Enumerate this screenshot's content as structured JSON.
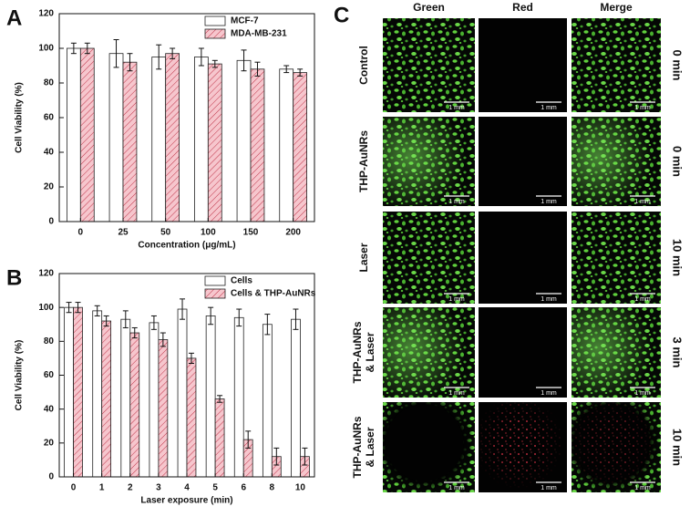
{
  "chart_data": [
    {
      "type": "bar",
      "label": "A",
      "x_label": "Concentration (μg/mL)",
      "y_label": "Cell Viability (%)",
      "categories": [
        "0",
        "25",
        "50",
        "100",
        "150",
        "200"
      ],
      "series": [
        {
          "name": "MCF-7",
          "color": "#ffffff",
          "hatch": false,
          "values": [
            100,
            97,
            95,
            95,
            93,
            88
          ],
          "errors": [
            3,
            8,
            7,
            5,
            6,
            2
          ]
        },
        {
          "name": "MDA-MB-231",
          "color": "#f6c6cd",
          "hatch": true,
          "values": [
            100,
            92,
            97,
            91,
            88,
            86
          ],
          "errors": [
            3,
            5,
            3,
            2,
            4,
            2
          ]
        }
      ],
      "ylim": [
        0,
        120
      ],
      "yticks": [
        0,
        20,
        40,
        60,
        80,
        100,
        120
      ],
      "legend": "upper right"
    },
    {
      "type": "bar",
      "label": "B",
      "x_label": "Laser exposure (min)",
      "y_label": "Cell Viability (%)",
      "categories": [
        "0",
        "1",
        "2",
        "3",
        "4",
        "5",
        "6",
        "8",
        "10"
      ],
      "series": [
        {
          "name": "Cells",
          "color": "#ffffff",
          "hatch": false,
          "values": [
            100,
            98,
            93,
            91,
            99,
            95,
            94,
            90,
            93
          ],
          "errors": [
            3,
            3,
            5,
            4,
            6,
            5,
            5,
            6,
            6
          ]
        },
        {
          "name": "Cells & THP-AuNRs",
          "color": "#f6c6cd",
          "hatch": true,
          "values": [
            100,
            92,
            85,
            81,
            70,
            46,
            22,
            12,
            12
          ],
          "errors": [
            3,
            3,
            3,
            4,
            3,
            2,
            5,
            5,
            5
          ]
        }
      ],
      "ylim": [
        0,
        120
      ],
      "yticks": [
        0,
        20,
        40,
        60,
        80,
        100,
        120
      ],
      "legend": "upper right"
    }
  ],
  "panel_c": {
    "label": "C",
    "columns": [
      "Green",
      "Red",
      "Merge"
    ],
    "scale_bar": "1 mm",
    "rows": [
      {
        "label": [
          "Control"
        ],
        "time": "0 min"
      },
      {
        "label": [
          "THP-AuNRs"
        ],
        "time": "0 min"
      },
      {
        "label": [
          "Laser"
        ],
        "time": "10 min"
      },
      {
        "label": [
          "THP-AuNRs",
          "& Laser"
        ],
        "time": "3 min"
      },
      {
        "label": [
          "THP-AuNRs",
          "& Laser"
        ],
        "time": "10 min"
      }
    ]
  }
}
